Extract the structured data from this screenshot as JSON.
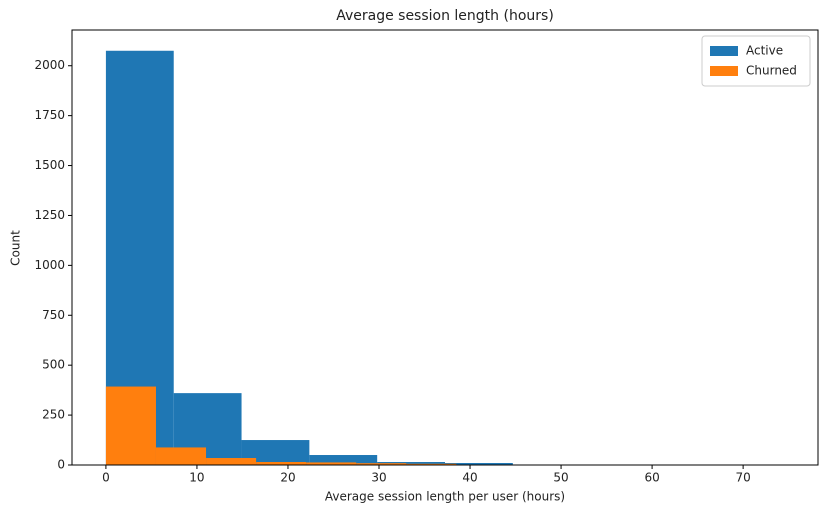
{
  "chart_data": {
    "type": "histogram",
    "title": "Average session length (hours)",
    "x_label": "Average session length per user (hours)",
    "y_label": "Count",
    "xlim": [
      -3.725,
      78.225
    ],
    "xticks": [
      0,
      10,
      20,
      30,
      40,
      50,
      60,
      70
    ],
    "ylim": [
      0,
      2179
    ],
    "yticks": [
      0,
      250,
      500,
      750,
      1000,
      1250,
      1500,
      1750,
      2000
    ],
    "legend": "upper right",
    "series": [
      {
        "name": "Active",
        "color": "#1f77b4",
        "bins": [
          0,
          7.45,
          14.9,
          22.35,
          29.8,
          37.25,
          44.7,
          52.15,
          59.6,
          67.05,
          74.5
        ],
        "values": [
          2075,
          360,
          125,
          50,
          15,
          10,
          0,
          0,
          0,
          1
        ]
      },
      {
        "name": "Churned",
        "color": "#ff7f0e",
        "bins": [
          0,
          5.5,
          11,
          16.5,
          22,
          27.5,
          33,
          38.5,
          44,
          49.5,
          55
        ],
        "values": [
          393,
          88,
          35,
          15,
          13,
          9,
          6,
          2,
          1,
          1
        ]
      }
    ]
  }
}
